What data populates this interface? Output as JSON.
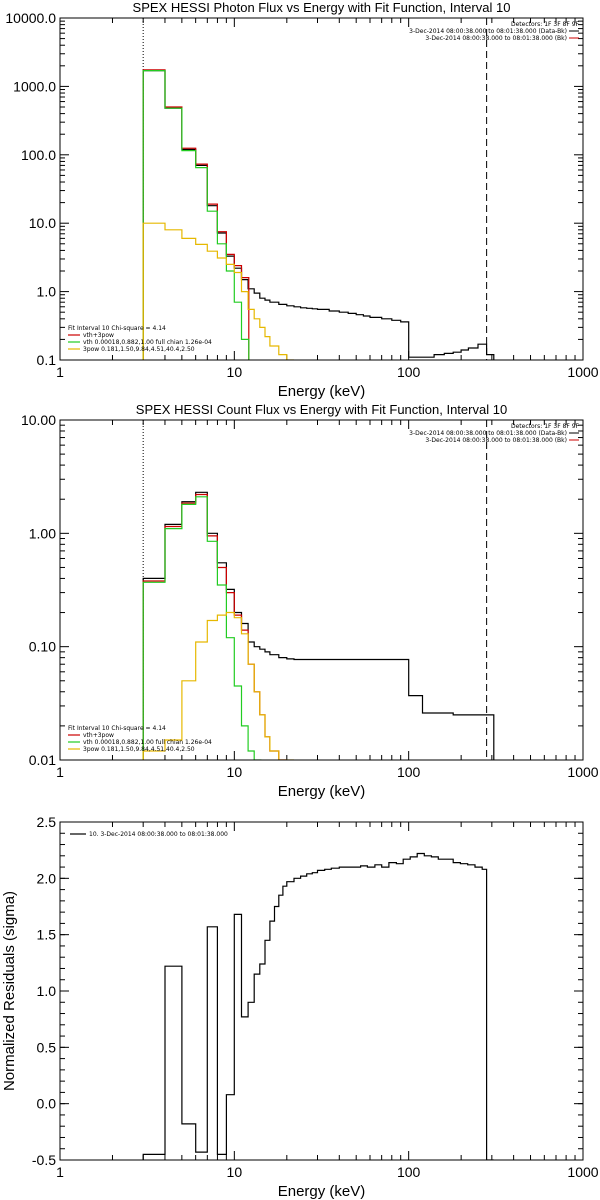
{
  "chart_data": [
    {
      "type": "line",
      "step": true,
      "title": "SPEX HESSI Photon Flux vs Energy with Fit Function, Interval 10",
      "xlabel": "Energy (keV)",
      "ylabel": "",
      "xscale": "log",
      "yscale": "log",
      "xlim": [
        1,
        1000
      ],
      "ylim": [
        0.1,
        10000
      ],
      "x_ticks": [
        "1",
        "10",
        "100",
        "1000"
      ],
      "y_ticks": [
        "0.1",
        "1.0",
        "10.0",
        "100.0",
        "1000.0",
        "10000.0"
      ],
      "header": {
        "detectors": "Detectors: 1F 3F 8F 9F",
        "time_line1": "3-Dec-2014 08:00:38.000 to 08:01:38.000 (Data-Bk)",
        "time_line2": "3-Dec-2014 08:00:38.000 to 08:01:38.000 (Bk)"
      },
      "legend": {
        "title": "Fit Interval 10   Chi-square = 4.14",
        "placement": "bottom-left",
        "entries": [
          {
            "label": "vth+3pow",
            "color": "#cc0000"
          },
          {
            "label": "vth 0.00018,0.882,1.00  full chian 1.26e-04",
            "color": "#22cc22"
          },
          {
            "label": "3pow 0.181,1.50,9.84,4.51,40.4,2.50",
            "color": "#e6b800"
          }
        ]
      },
      "fit_range_keV": [
        3,
        280
      ],
      "series": [
        {
          "name": "",
          "color": "#000000",
          "x": [
            3,
            4,
            5,
            6,
            7,
            8,
            9,
            10,
            11,
            12,
            13,
            14,
            15,
            16,
            18,
            20,
            22,
            24,
            26,
            28,
            30,
            35,
            40,
            45,
            50,
            55,
            60,
            70,
            80,
            90,
            100,
            120,
            140,
            160,
            180,
            200,
            220,
            250,
            280
          ],
          "y": [
            1700,
            480,
            120,
            70,
            18,
            7.2,
            3.3,
            2.2,
            1.5,
            1.1,
            0.95,
            0.8,
            0.75,
            0.7,
            0.65,
            0.62,
            0.6,
            0.58,
            0.57,
            0.56,
            0.55,
            0.52,
            0.5,
            0.48,
            0.46,
            0.44,
            0.42,
            0.4,
            0.38,
            0.36,
            0.11,
            0.11,
            0.12,
            0.125,
            0.13,
            0.14,
            0.15,
            0.17,
            0.12
          ]
        },
        {
          "name": "vth+3pow",
          "color": "#cc0000",
          "x": [
            3,
            4,
            5,
            6,
            7,
            8,
            9,
            10,
            11
          ],
          "y": [
            1750,
            500,
            125,
            73,
            19,
            7.5,
            3.5,
            2.4,
            1.6
          ]
        },
        {
          "name": "vth",
          "color": "#22cc22",
          "x": [
            3,
            4,
            5,
            6,
            7,
            8,
            9,
            10,
            11
          ],
          "y": [
            1700,
            480,
            115,
            65,
            15,
            5.0,
            2.0,
            0.7,
            0.2
          ]
        },
        {
          "name": "3pow",
          "color": "#e6b800",
          "x": [
            3,
            4,
            5,
            6,
            7,
            8,
            9,
            10,
            11,
            12,
            13,
            14,
            15,
            16,
            18,
            20
          ],
          "y": [
            10,
            8,
            6,
            4.9,
            3.9,
            3.1,
            2.5,
            1.9,
            1.0,
            0.55,
            0.4,
            0.3,
            0.22,
            0.16,
            0.12,
            0.1
          ]
        }
      ]
    },
    {
      "type": "line",
      "step": true,
      "title": "SPEX HESSI Count Flux vs Energy with Fit Function, Interval 10",
      "xlabel": "Energy (keV)",
      "ylabel": "",
      "xscale": "log",
      "yscale": "log",
      "xlim": [
        1,
        1000
      ],
      "ylim": [
        0.01,
        10
      ],
      "x_ticks": [
        "1",
        "10",
        "100",
        "1000"
      ],
      "y_ticks": [
        "0.01",
        "0.10",
        "1.00",
        "10.00"
      ],
      "header": {
        "detectors": "Detectors: 1F 3F 8F 9F",
        "time_line1": "3-Dec-2014 08:00:38.000 to 08:01:38.000 (Data-Bk)",
        "time_line2": "3-Dec-2014 08:00:38.000 to 08:01:38.000 (Bk)"
      },
      "legend": {
        "title": "Fit Interval 10   Chi-square = 4.14",
        "placement": "bottom-left",
        "entries": [
          {
            "label": "vth+3pow",
            "color": "#cc0000"
          },
          {
            "label": "vth 0.00018,0.882,1.00  full chian 1.26e-04",
            "color": "#22cc22"
          },
          {
            "label": "3pow 0.181,1.50,9.84,4.51,40.4,2.50",
            "color": "#e6b800"
          }
        ]
      },
      "fit_range_keV": [
        3,
        280
      ],
      "series": [
        {
          "name": "",
          "color": "#000000",
          "x": [
            3,
            4,
            5,
            6,
            7,
            8,
            9,
            10,
            11,
            12,
            13,
            14,
            15,
            16,
            18,
            20,
            22,
            24,
            26,
            28,
            30,
            35,
            40,
            45,
            50,
            55,
            60,
            70,
            80,
            90,
            100,
            120,
            140,
            160,
            180,
            200,
            220,
            250,
            280
          ],
          "y": [
            0.4,
            1.2,
            1.9,
            2.3,
            1.0,
            0.55,
            0.32,
            0.2,
            0.16,
            0.11,
            0.1,
            0.095,
            0.09,
            0.085,
            0.08,
            0.078,
            0.077,
            0.077,
            0.077,
            0.077,
            0.077,
            0.077,
            0.077,
            0.077,
            0.077,
            0.077,
            0.077,
            0.077,
            0.077,
            0.077,
            0.037,
            0.026,
            0.026,
            0.026,
            0.025,
            0.025,
            0.025,
            0.025,
            0.025
          ]
        },
        {
          "name": "vth+3pow",
          "color": "#cc0000",
          "x": [
            3,
            4,
            5,
            6,
            7,
            8,
            9,
            10,
            11,
            12,
            13,
            14,
            15,
            16,
            18
          ],
          "y": [
            0.38,
            1.15,
            1.85,
            2.2,
            0.95,
            0.5,
            0.3,
            0.19,
            0.14,
            0.07,
            0.04,
            0.025,
            0.016,
            0.012,
            0.01
          ]
        },
        {
          "name": "vth",
          "color": "#22cc22",
          "x": [
            3,
            4,
            5,
            6,
            7,
            8,
            9,
            10,
            11,
            12,
            13
          ],
          "y": [
            0.37,
            1.1,
            1.8,
            2.1,
            0.85,
            0.35,
            0.12,
            0.045,
            0.02,
            0.012,
            0.01
          ]
        },
        {
          "name": "3pow",
          "color": "#e6b800",
          "x": [
            3,
            4,
            5,
            6,
            7,
            8,
            9,
            10,
            11,
            12,
            13,
            14,
            15,
            16,
            18,
            20
          ],
          "y": [
            0.012,
            0.015,
            0.05,
            0.11,
            0.17,
            0.19,
            0.2,
            0.18,
            0.13,
            0.07,
            0.04,
            0.025,
            0.016,
            0.012,
            0.01,
            0.01
          ]
        }
      ]
    },
    {
      "type": "line",
      "step": true,
      "title": "",
      "xlabel": "Energy (keV)",
      "ylabel": "Normalized Residuals (sigma)",
      "xscale": "log",
      "yscale": "linear",
      "xlim": [
        1,
        1000
      ],
      "ylim": [
        -0.5,
        2.5
      ],
      "x_ticks": [
        "1",
        "10",
        "100",
        "1000"
      ],
      "y_ticks": [
        "-0.5",
        "0.0",
        "0.5",
        "1.0",
        "1.5",
        "2.0",
        "2.5"
      ],
      "legend": {
        "placement": "top-left",
        "entries": [
          {
            "label": "10.  3-Dec-2014 08:00:38.000 to 08:01:38.000",
            "color": "#000000"
          }
        ]
      },
      "series": [
        {
          "name": "10.  3-Dec-2014 08:00:38.000 to 08:01:38.000",
          "color": "#000000",
          "x": [
            3,
            4,
            5,
            6,
            7,
            8,
            9,
            10,
            11,
            12,
            13,
            14,
            15,
            16,
            17,
            18,
            19,
            20,
            22,
            24,
            26,
            28,
            30,
            33,
            36,
            40,
            44,
            48,
            53,
            58,
            64,
            70,
            77,
            85,
            93,
            102,
            112,
            123,
            135,
            148,
            163,
            180,
            198,
            218,
            240,
            264,
            280
          ],
          "y": [
            -0.45,
            1.22,
            -0.18,
            -0.43,
            1.57,
            -0.45,
            0.08,
            1.68,
            0.77,
            0.9,
            1.15,
            1.24,
            1.45,
            1.62,
            1.75,
            1.85,
            1.93,
            1.97,
            2.0,
            2.02,
            2.04,
            2.05,
            2.07,
            2.08,
            2.09,
            2.1,
            2.1,
            2.1,
            2.11,
            2.1,
            2.12,
            2.1,
            2.14,
            2.13,
            2.17,
            2.19,
            2.22,
            2.2,
            2.19,
            2.17,
            2.17,
            2.14,
            2.13,
            2.12,
            2.1,
            2.08,
            -0.5
          ]
        }
      ]
    }
  ]
}
